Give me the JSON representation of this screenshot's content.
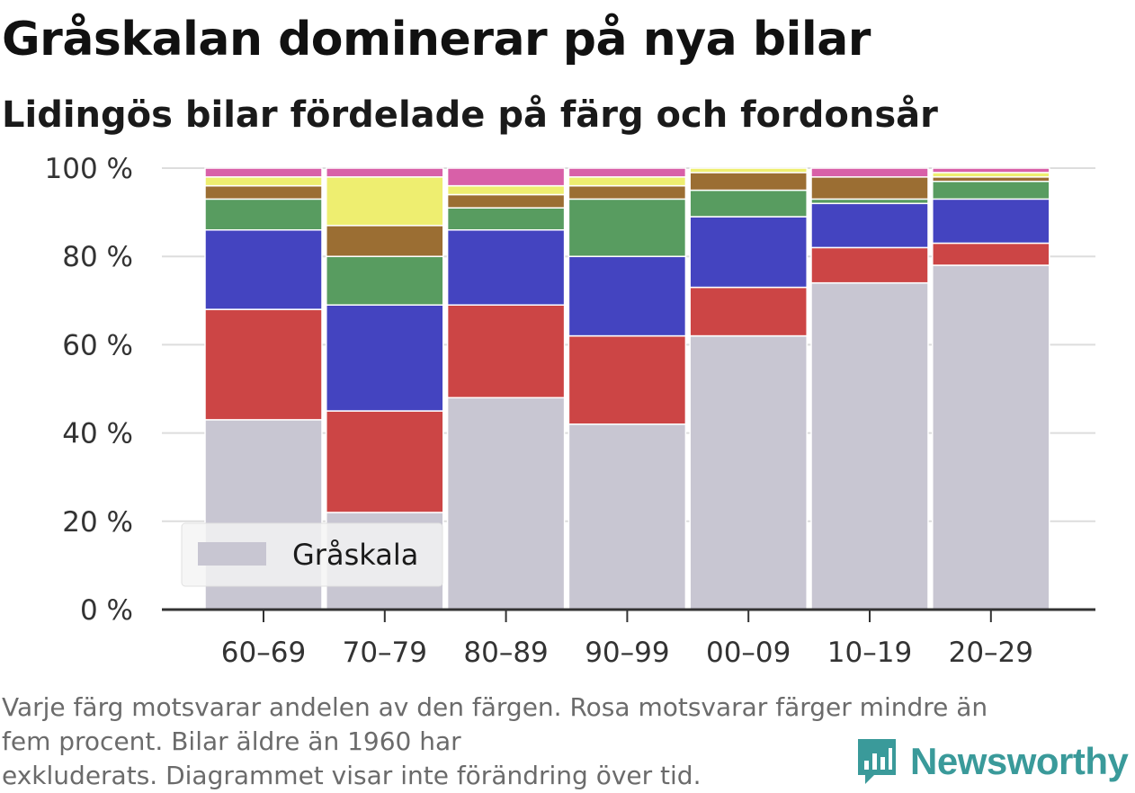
{
  "title": "Gråskalan dominerar på nya bilar",
  "subtitle": "Lidingös bilar fördelade på färg och fordonsår",
  "footnote": {
    "line1": "Varje färg motsvarar andelen av den färgen. Rosa motsvarar färger mindre än",
    "line2": "fem procent. Bilar äldre än 1960 har",
    "line3": "exkluderats. Diagrammet visar inte förändring över tid."
  },
  "brand": "Newsworthy",
  "legend": {
    "label": "Gråskala"
  },
  "colors": {
    "grayscale": "#c8c6d2",
    "red": "#cc4545",
    "blue": "#4444c0",
    "green": "#589c60",
    "brown": "#9b6e33",
    "yellow": "#eeee70",
    "pink": "#d860a8",
    "axis": "#333333",
    "grid": "#dddddd",
    "tick_text": "#333333",
    "brand": "#3a9a9a"
  },
  "chart_data": {
    "type": "bar",
    "stacked": true,
    "categories": [
      "60–69",
      "70–79",
      "80–89",
      "90–99",
      "00–09",
      "10–19",
      "20–29"
    ],
    "y_ticks": [
      "0 %",
      "20 %",
      "40 %",
      "60 %",
      "80 %",
      "100 %"
    ],
    "ylim": [
      0,
      100
    ],
    "grid": true,
    "legend_position": "bottom-left",
    "series": [
      {
        "name": "Gråskala",
        "color_key": "grayscale",
        "values": [
          43,
          22,
          48,
          42,
          62,
          74,
          78
        ]
      },
      {
        "color_key": "red",
        "values": [
          25,
          23,
          21,
          20,
          11,
          8,
          5
        ]
      },
      {
        "color_key": "blue",
        "values": [
          18,
          24,
          17,
          18,
          16,
          10,
          10
        ]
      },
      {
        "color_key": "green",
        "values": [
          7,
          11,
          5,
          13,
          6,
          1,
          4
        ]
      },
      {
        "color_key": "brown",
        "values": [
          3,
          7,
          3,
          3,
          4,
          5,
          1
        ]
      },
      {
        "color_key": "yellow",
        "values": [
          2,
          11,
          2,
          2,
          1,
          0,
          1
        ]
      },
      {
        "color_key": "pink",
        "values": [
          2,
          2,
          4,
          2,
          0,
          2,
          1
        ]
      }
    ]
  }
}
